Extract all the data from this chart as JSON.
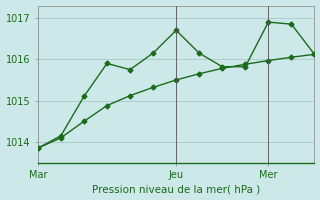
{
  "line1_x": [
    0,
    1,
    2,
    3,
    4,
    5,
    6,
    7,
    8,
    9,
    10,
    11,
    12
  ],
  "line1_y": [
    1013.85,
    1014.15,
    1015.1,
    1015.9,
    1015.75,
    1016.15,
    1016.7,
    1016.15,
    1015.82,
    1015.82,
    1016.9,
    1016.85,
    1016.12
  ],
  "line2_x": [
    0,
    1,
    2,
    3,
    4,
    5,
    6,
    7,
    8,
    9,
    10,
    11,
    12
  ],
  "line2_y": [
    1013.85,
    1014.1,
    1014.5,
    1014.88,
    1015.12,
    1015.32,
    1015.5,
    1015.65,
    1015.78,
    1015.88,
    1015.97,
    1016.05,
    1016.12
  ],
  "line_color": "#1a6b1a",
  "bg_color": "#cde8e8",
  "grid_color": "#a8c8c8",
  "xlabel": "Pression niveau de la mer( hPa )",
  "ylim": [
    1013.5,
    1017.3
  ],
  "yticks": [
    1014,
    1015,
    1016,
    1017
  ],
  "xlim": [
    0,
    12
  ],
  "xtick_positions": [
    0,
    6,
    10
  ],
  "xtick_labels": [
    "Mar",
    "Jeu",
    "Mer"
  ],
  "vline_positions": [
    6,
    10
  ],
  "marker": "D",
  "markersize": 2.5,
  "linewidth": 1.0
}
